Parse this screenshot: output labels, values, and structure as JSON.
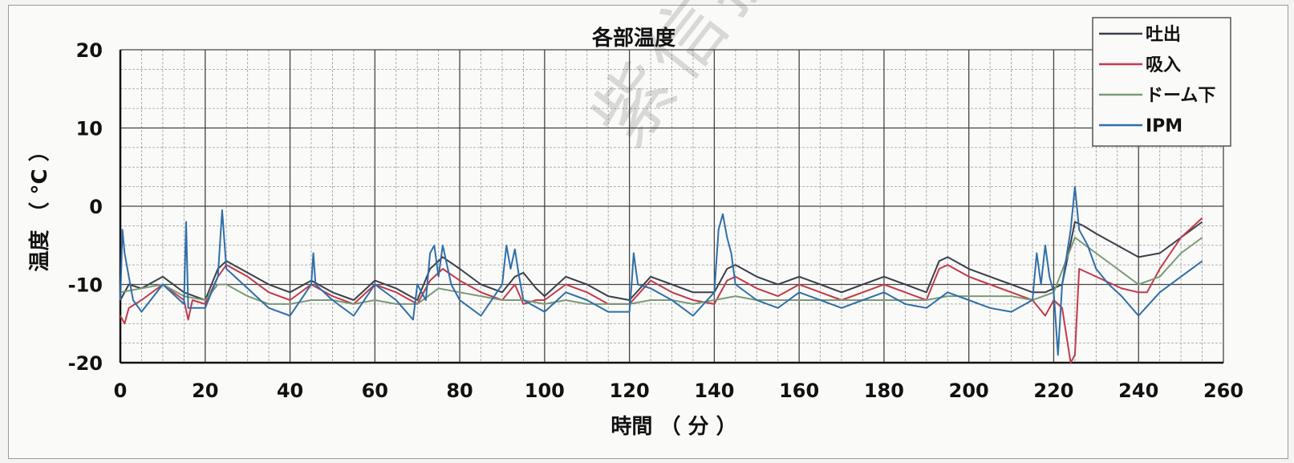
{
  "chart_data": {
    "type": "line",
    "title": "各部温度",
    "xlabel": "時間 （ 分 ）",
    "ylabel": "温度 （ °C ）",
    "xlim": [
      0,
      260
    ],
    "ylim": [
      -20,
      20
    ],
    "x_ticks": [
      0,
      20,
      40,
      60,
      80,
      100,
      120,
      140,
      160,
      180,
      200,
      220,
      240,
      260
    ],
    "y_ticks": [
      20,
      10,
      0,
      -10,
      -20
    ],
    "grid": true,
    "legend_position": "top-right",
    "series": [
      {
        "name": "吐出",
        "color": "#3a3f4a",
        "points": [
          [
            0,
            -12
          ],
          [
            2,
            -10
          ],
          [
            5,
            -10.5
          ],
          [
            10,
            -9
          ],
          [
            15,
            -11
          ],
          [
            20,
            -12
          ],
          [
            23,
            -8
          ],
          [
            25,
            -7
          ],
          [
            30,
            -8.5
          ],
          [
            35,
            -10
          ],
          [
            40,
            -11
          ],
          [
            45,
            -9.5
          ],
          [
            50,
            -11
          ],
          [
            55,
            -12
          ],
          [
            60,
            -9.5
          ],
          [
            65,
            -10.5
          ],
          [
            70,
            -12
          ],
          [
            73,
            -8
          ],
          [
            76,
            -6.5
          ],
          [
            80,
            -8
          ],
          [
            85,
            -10
          ],
          [
            90,
            -11
          ],
          [
            93,
            -9
          ],
          [
            95,
            -8.5
          ],
          [
            98,
            -10.5
          ],
          [
            100,
            -11.5
          ],
          [
            105,
            -9
          ],
          [
            110,
            -10
          ],
          [
            115,
            -11.5
          ],
          [
            120,
            -12
          ],
          [
            125,
            -9
          ],
          [
            130,
            -10
          ],
          [
            135,
            -11
          ],
          [
            140,
            -11
          ],
          [
            143,
            -8
          ],
          [
            145,
            -7.5
          ],
          [
            150,
            -9
          ],
          [
            155,
            -10
          ],
          [
            160,
            -9
          ],
          [
            165,
            -10
          ],
          [
            170,
            -11
          ],
          [
            175,
            -10
          ],
          [
            180,
            -9
          ],
          [
            185,
            -10
          ],
          [
            190,
            -11
          ],
          [
            193,
            -7
          ],
          [
            195,
            -6.5
          ],
          [
            200,
            -8
          ],
          [
            205,
            -9
          ],
          [
            210,
            -10
          ],
          [
            215,
            -11
          ],
          [
            218,
            -11
          ],
          [
            222,
            -10
          ],
          [
            225,
            -2
          ],
          [
            227,
            -2.5
          ],
          [
            230,
            -3.5
          ],
          [
            235,
            -5
          ],
          [
            240,
            -6.5
          ],
          [
            245,
            -6
          ],
          [
            250,
            -4
          ],
          [
            255,
            -2
          ]
        ]
      },
      {
        "name": "吸入",
        "color": "#c23a4c",
        "points": [
          [
            0,
            -14
          ],
          [
            1,
            -15
          ],
          [
            2,
            -13
          ],
          [
            5,
            -12
          ],
          [
            10,
            -10
          ],
          [
            15,
            -12
          ],
          [
            16,
            -14.5
          ],
          [
            17,
            -12
          ],
          [
            20,
            -12.5
          ],
          [
            23,
            -9
          ],
          [
            25,
            -7.5
          ],
          [
            30,
            -9
          ],
          [
            35,
            -11
          ],
          [
            40,
            -12
          ],
          [
            45,
            -10
          ],
          [
            50,
            -11.5
          ],
          [
            55,
            -12.5
          ],
          [
            60,
            -10
          ],
          [
            65,
            -11
          ],
          [
            70,
            -12.5
          ],
          [
            73,
            -9.5
          ],
          [
            76,
            -8
          ],
          [
            80,
            -9.5
          ],
          [
            85,
            -11
          ],
          [
            90,
            -12
          ],
          [
            93,
            -10
          ],
          [
            95,
            -12.5
          ],
          [
            98,
            -12
          ],
          [
            100,
            -12
          ],
          [
            105,
            -10
          ],
          [
            110,
            -11
          ],
          [
            115,
            -12.5
          ],
          [
            120,
            -12.5
          ],
          [
            125,
            -9.5
          ],
          [
            130,
            -11
          ],
          [
            135,
            -12
          ],
          [
            140,
            -12.5
          ],
          [
            143,
            -9.5
          ],
          [
            145,
            -9
          ],
          [
            150,
            -10.5
          ],
          [
            155,
            -11.5
          ],
          [
            160,
            -10
          ],
          [
            165,
            -11
          ],
          [
            170,
            -12
          ],
          [
            175,
            -11
          ],
          [
            180,
            -10
          ],
          [
            185,
            -11
          ],
          [
            190,
            -12
          ],
          [
            193,
            -8
          ],
          [
            195,
            -7.5
          ],
          [
            200,
            -9
          ],
          [
            205,
            -10
          ],
          [
            210,
            -11
          ],
          [
            215,
            -12
          ],
          [
            218,
            -14
          ],
          [
            220,
            -12
          ],
          [
            222,
            -13
          ],
          [
            224,
            -20
          ],
          [
            225,
            -19
          ],
          [
            226,
            -8
          ],
          [
            228,
            -8.5
          ],
          [
            232,
            -9.5
          ],
          [
            236,
            -10.5
          ],
          [
            240,
            -11
          ],
          [
            242,
            -11
          ],
          [
            245,
            -8
          ],
          [
            250,
            -4
          ],
          [
            255,
            -1.5
          ]
        ]
      },
      {
        "name": "ドーム下",
        "color": "#7a9a78",
        "points": [
          [
            0,
            -11
          ],
          [
            5,
            -10.5
          ],
          [
            10,
            -10
          ],
          [
            15,
            -11.5
          ],
          [
            20,
            -12
          ],
          [
            23,
            -10
          ],
          [
            25,
            -10
          ],
          [
            30,
            -11.5
          ],
          [
            35,
            -12.5
          ],
          [
            40,
            -12.5
          ],
          [
            45,
            -12
          ],
          [
            50,
            -12
          ],
          [
            55,
            -12.5
          ],
          [
            60,
            -12
          ],
          [
            65,
            -12.5
          ],
          [
            70,
            -12.5
          ],
          [
            75,
            -10.5
          ],
          [
            80,
            -11
          ],
          [
            85,
            -11.5
          ],
          [
            90,
            -12
          ],
          [
            95,
            -12
          ],
          [
            100,
            -12.5
          ],
          [
            105,
            -12
          ],
          [
            110,
            -12.5
          ],
          [
            115,
            -12.5
          ],
          [
            120,
            -12.5
          ],
          [
            125,
            -12
          ],
          [
            130,
            -12
          ],
          [
            135,
            -12.5
          ],
          [
            140,
            -12
          ],
          [
            145,
            -11.5
          ],
          [
            150,
            -12
          ],
          [
            155,
            -12
          ],
          [
            160,
            -12
          ],
          [
            165,
            -12
          ],
          [
            170,
            -12
          ],
          [
            175,
            -12
          ],
          [
            180,
            -12
          ],
          [
            185,
            -12
          ],
          [
            190,
            -12
          ],
          [
            195,
            -11.5
          ],
          [
            200,
            -11.5
          ],
          [
            205,
            -11.5
          ],
          [
            210,
            -11.5
          ],
          [
            215,
            -12
          ],
          [
            220,
            -11
          ],
          [
            225,
            -4
          ],
          [
            230,
            -6
          ],
          [
            235,
            -8
          ],
          [
            240,
            -10
          ],
          [
            245,
            -9
          ],
          [
            250,
            -6
          ],
          [
            255,
            -4
          ]
        ]
      },
      {
        "name": "IPM",
        "color": "#2f6fa8",
        "points": [
          [
            0,
            -12
          ],
          [
            0.5,
            -3
          ],
          [
            1,
            -6
          ],
          [
            2,
            -9
          ],
          [
            3,
            -12
          ],
          [
            5,
            -13.5
          ],
          [
            10,
            -10
          ],
          [
            15,
            -12.5
          ],
          [
            15.5,
            -2
          ],
          [
            16,
            -13
          ],
          [
            20,
            -13
          ],
          [
            23,
            -9
          ],
          [
            24,
            -0.5
          ],
          [
            25,
            -8
          ],
          [
            30,
            -10.5
          ],
          [
            35,
            -13
          ],
          [
            40,
            -14
          ],
          [
            45,
            -10
          ],
          [
            45.5,
            -6
          ],
          [
            46,
            -10
          ],
          [
            50,
            -12
          ],
          [
            55,
            -14
          ],
          [
            60,
            -10
          ],
          [
            65,
            -12
          ],
          [
            69,
            -14.5
          ],
          [
            70,
            -10
          ],
          [
            72,
            -12
          ],
          [
            73,
            -6
          ],
          [
            74,
            -5
          ],
          [
            75,
            -9
          ],
          [
            76,
            -5
          ],
          [
            78,
            -10
          ],
          [
            80,
            -12
          ],
          [
            85,
            -14
          ],
          [
            90,
            -10
          ],
          [
            91,
            -5
          ],
          [
            92,
            -8
          ],
          [
            93,
            -5.5
          ],
          [
            94,
            -9
          ],
          [
            95,
            -12
          ],
          [
            100,
            -13.5
          ],
          [
            105,
            -11
          ],
          [
            110,
            -12
          ],
          [
            115,
            -13.5
          ],
          [
            120,
            -13.5
          ],
          [
            120.5,
            -10
          ],
          [
            121,
            -6
          ],
          [
            122,
            -10
          ],
          [
            125,
            -10.5
          ],
          [
            130,
            -12
          ],
          [
            135,
            -14
          ],
          [
            140,
            -11
          ],
          [
            141,
            -3
          ],
          [
            142,
            -1
          ],
          [
            143,
            -4
          ],
          [
            144,
            -6
          ],
          [
            145,
            -10
          ],
          [
            150,
            -12
          ],
          [
            155,
            -13
          ],
          [
            160,
            -11
          ],
          [
            165,
            -12
          ],
          [
            170,
            -13
          ],
          [
            175,
            -12
          ],
          [
            180,
            -11
          ],
          [
            185,
            -12.5
          ],
          [
            190,
            -13
          ],
          [
            195,
            -11
          ],
          [
            200,
            -12
          ],
          [
            205,
            -13
          ],
          [
            210,
            -13.5
          ],
          [
            215,
            -12
          ],
          [
            216,
            -6
          ],
          [
            217,
            -10
          ],
          [
            218,
            -5
          ],
          [
            219,
            -9
          ],
          [
            220,
            -11
          ],
          [
            221,
            -19
          ],
          [
            222,
            -10
          ],
          [
            224,
            -3
          ],
          [
            225,
            2.5
          ],
          [
            226,
            -3
          ],
          [
            228,
            -5
          ],
          [
            230,
            -8
          ],
          [
            233,
            -10
          ],
          [
            236,
            -11.5
          ],
          [
            240,
            -14
          ],
          [
            245,
            -11
          ],
          [
            250,
            -9
          ],
          [
            255,
            -7
          ]
        ]
      }
    ]
  },
  "watermark": "紫信搜索蓝领星球"
}
